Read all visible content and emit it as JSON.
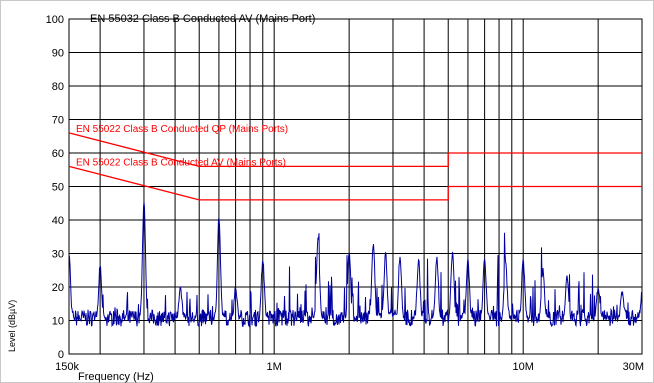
{
  "chart_data": {
    "type": "line",
    "title": "EN 55032 Class B Conducted AV (Mains Port)",
    "xlabel": "Frequency (Hz)",
    "ylabel": "Level (dBµV)",
    "xscale": "log",
    "xlim": [
      150000,
      30000000
    ],
    "ylim": [
      0,
      100
    ],
    "grid": true,
    "y_ticks": [
      0,
      10,
      20,
      30,
      40,
      50,
      60,
      70,
      80,
      90,
      100
    ],
    "x_tick_labels": [
      {
        "value": 150000,
        "label": "150k"
      },
      {
        "value": 1000000,
        "label": "1M"
      },
      {
        "value": 10000000,
        "label": "10M"
      },
      {
        "value": 30000000,
        "label": "30M"
      }
    ],
    "x_grid_lines": [
      200000,
      300000,
      400000,
      500000,
      600000,
      700000,
      800000,
      900000,
      1000000,
      2000000,
      3000000,
      4000000,
      5000000,
      6000000,
      7000000,
      8000000,
      9000000,
      10000000,
      20000000,
      30000000
    ],
    "limit_lines": [
      {
        "name": "EN 55022 Class B Conducted QP (Mains Ports)",
        "color": "#ff0000",
        "points": [
          [
            150000,
            66
          ],
          [
            500000,
            56
          ],
          [
            5000000,
            56
          ],
          [
            5000000,
            60
          ],
          [
            30000000,
            60
          ]
        ]
      },
      {
        "name": "EN 55022 Class B Conducted AV (Mains Ports)",
        "color": "#ff0000",
        "points": [
          [
            150000,
            56
          ],
          [
            500000,
            46
          ],
          [
            5000000,
            46
          ],
          [
            5000000,
            50
          ],
          [
            30000000,
            50
          ]
        ]
      }
    ],
    "series": [
      {
        "color": "#0000a0",
        "noise_floor": 10,
        "peaks": [
          {
            "x": 150000,
            "y": 30
          },
          {
            "x": 200000,
            "y": 26
          },
          {
            "x": 300000,
            "y": 45
          },
          {
            "x": 420000,
            "y": 20
          },
          {
            "x": 600000,
            "y": 41
          },
          {
            "x": 700000,
            "y": 20
          },
          {
            "x": 900000,
            "y": 28
          },
          {
            "x": 1500000,
            "y": 35
          },
          {
            "x": 2000000,
            "y": 31
          },
          {
            "x": 2500000,
            "y": 33
          },
          {
            "x": 2800000,
            "y": 30
          },
          {
            "x": 3200000,
            "y": 29
          },
          {
            "x": 3800000,
            "y": 28
          },
          {
            "x": 4500000,
            "y": 29
          },
          {
            "x": 5200000,
            "y": 30
          },
          {
            "x": 6000000,
            "y": 28
          },
          {
            "x": 7000000,
            "y": 29
          },
          {
            "x": 8500000,
            "y": 27
          },
          {
            "x": 10000000,
            "y": 28
          },
          {
            "x": 12000000,
            "y": 25
          },
          {
            "x": 15000000,
            "y": 23
          },
          {
            "x": 20000000,
            "y": 20
          },
          {
            "x": 25000000,
            "y": 19
          },
          {
            "x": 30000000,
            "y": 18
          }
        ]
      }
    ]
  }
}
